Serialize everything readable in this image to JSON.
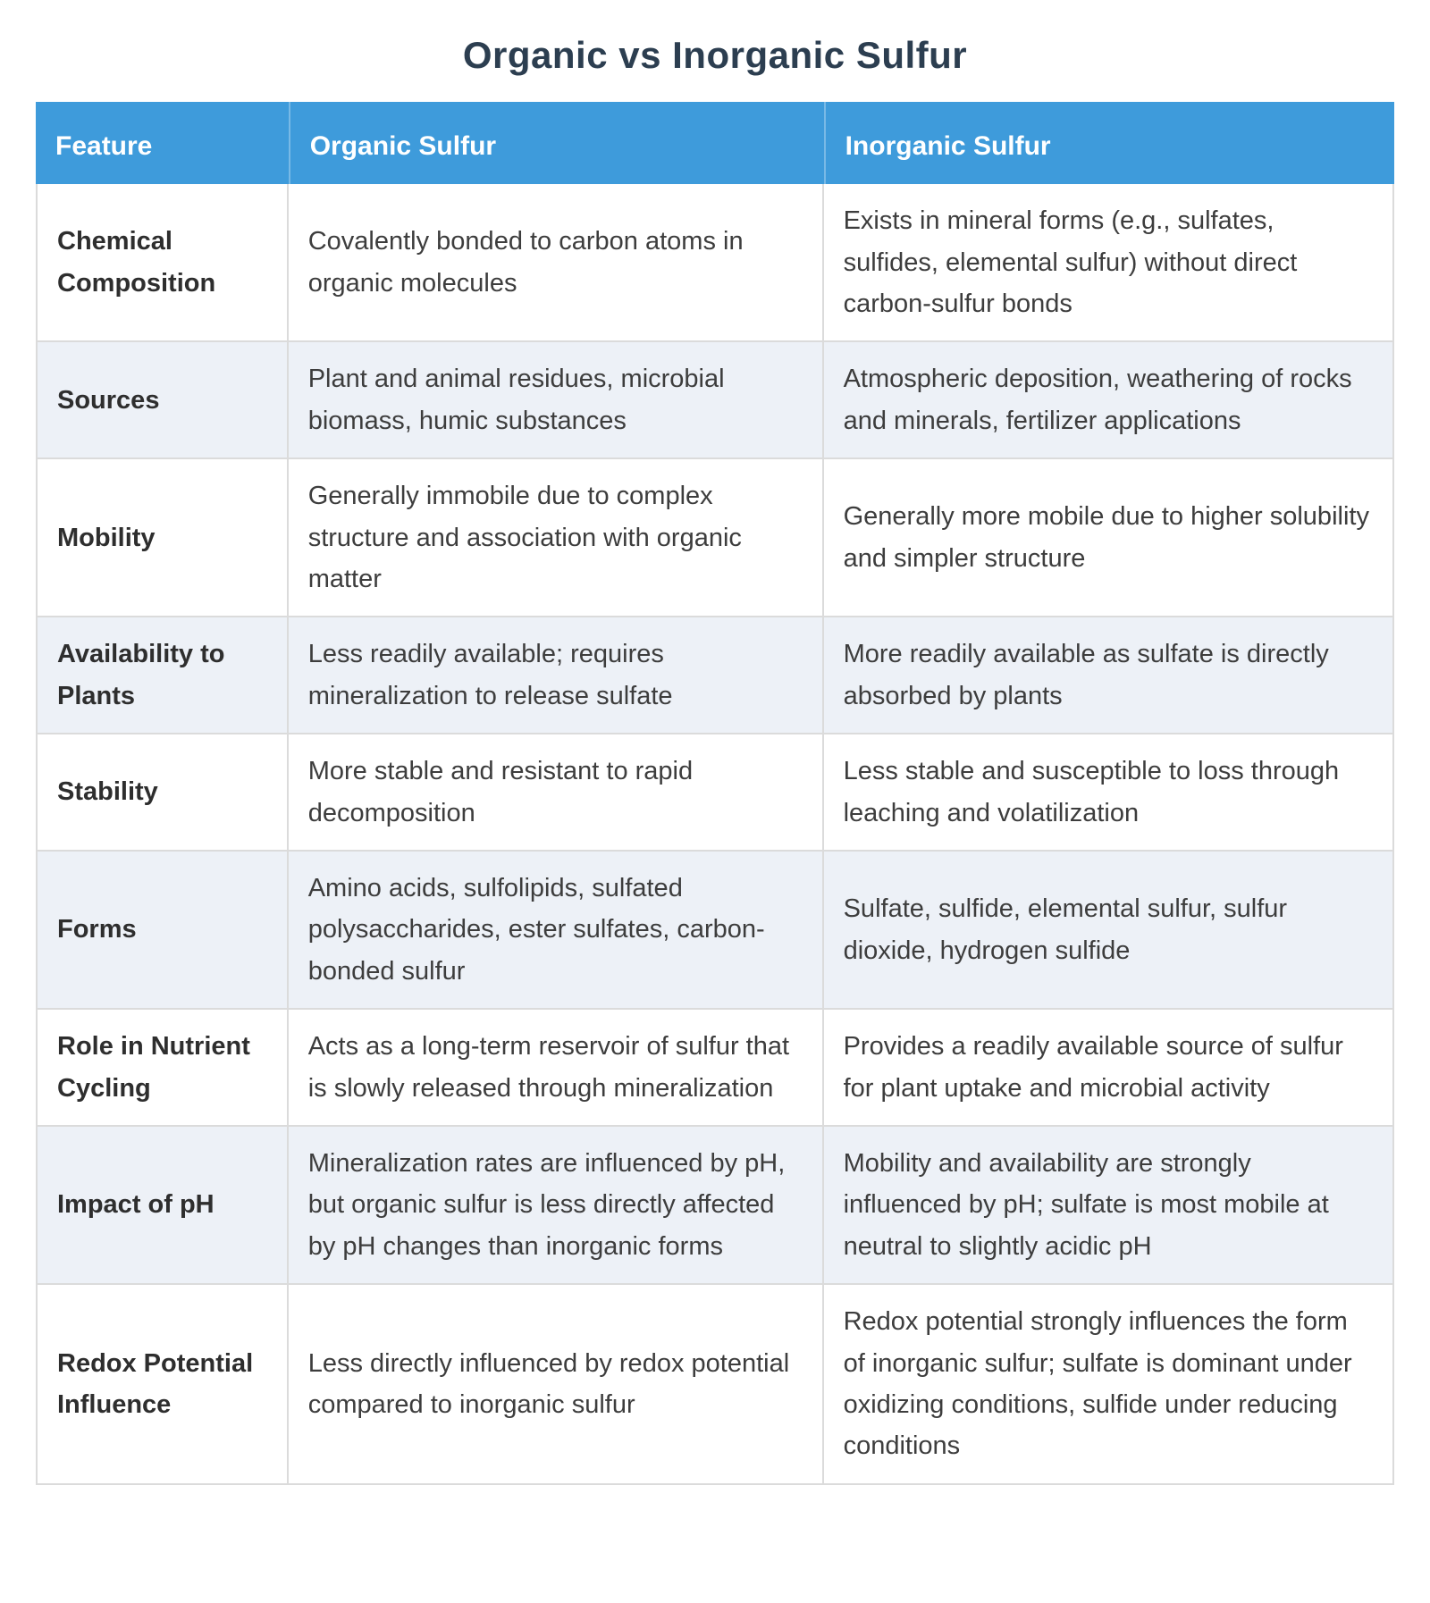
{
  "title": "Organic vs Inorganic Sulfur",
  "colors": {
    "header_bg": "#3e9bdb",
    "header_text": "#ffffff",
    "title_text": "#2c3e50",
    "row_alt_bg": "#edf1f7",
    "row_bg": "#ffffff",
    "border": "#dbdbdb",
    "body_text": "#3d3d3d",
    "feature_text": "#2e2e2e"
  },
  "chart_data": {
    "type": "table",
    "title": "Organic vs Inorganic Sulfur",
    "columns": [
      "Feature",
      "Organic Sulfur",
      "Inorganic Sulfur"
    ],
    "rows": [
      [
        "Chemical Composition",
        "Covalently bonded to carbon atoms in organic molecules",
        "Exists in mineral forms (e.g., sulfates, sulfides, elemental sulfur) without direct carbon-sulfur bonds"
      ],
      [
        "Sources",
        "Plant and animal residues, microbial biomass, humic substances",
        "Atmospheric deposition, weathering of rocks and minerals, fertilizer applications"
      ],
      [
        "Mobility",
        "Generally immobile due to complex structure and association with organic matter",
        "Generally more mobile due to higher solubility and simpler structure"
      ],
      [
        "Availability to Plants",
        "Less readily available; requires mineralization to release sulfate",
        "More readily available as sulfate is directly absorbed by plants"
      ],
      [
        "Stability",
        "More stable and resistant to rapid decomposition",
        "Less stable and susceptible to loss through leaching and volatilization"
      ],
      [
        "Forms",
        "Amino acids, sulfolipids, sulfated polysaccharides, ester sulfates, carbon-bonded sulfur",
        "Sulfate, sulfide, elemental sulfur, sulfur dioxide, hydrogen sulfide"
      ],
      [
        "Role in Nutrient Cycling",
        "Acts as a long-term reservoir of sulfur that is slowly released through mineralization",
        "Provides a readily available source of sulfur for plant uptake and microbial activity"
      ],
      [
        "Impact of pH",
        "Mineralization rates are influenced by pH, but organic sulfur is less directly affected by pH changes than inorganic forms",
        "Mobility and availability are strongly influenced by pH; sulfate is most mobile at neutral to slightly acidic pH"
      ],
      [
        "Redox Potential Influence",
        "Less directly influenced by redox potential compared to inorganic sulfur",
        "Redox potential strongly influences the form of inorganic sulfur; sulfate is dominant under oxidizing conditions, sulfide under reducing conditions"
      ]
    ]
  }
}
